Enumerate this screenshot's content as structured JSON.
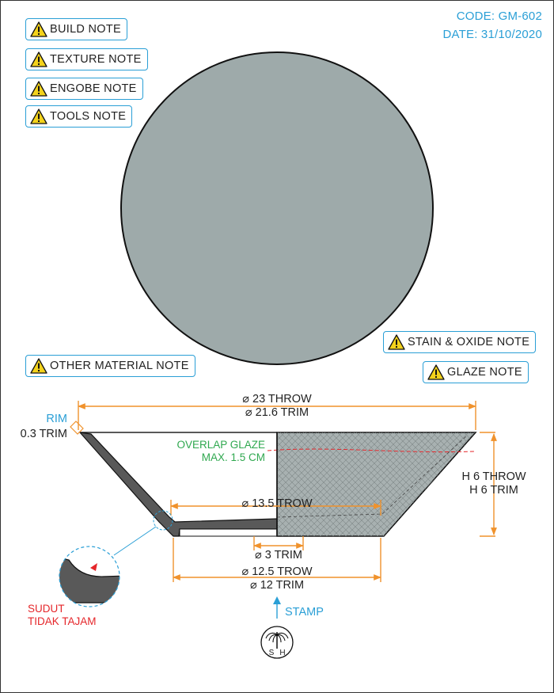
{
  "header": {
    "code": "CODE: GM-602",
    "date": "DATE: 31/10/2020"
  },
  "notes": {
    "build": "BUILD NOTE",
    "texture": "TEXTURE NOTE",
    "engobe": "ENGOBE NOTE",
    "tools": "TOOLS NOTE",
    "other_material": "OTHER MATERIAL NOTE",
    "stain_oxide": "STAIN & OXIDE NOTE",
    "glaze": "GLAZE NOTE"
  },
  "top_view": {
    "fill_color": "#9eaaaa"
  },
  "section": {
    "glaze_color": "#a8b1b1",
    "clay_color": "#595959",
    "dimension_color": "#f0922c",
    "diameter_top_throw": "⌀ 23 THROW",
    "diameter_top_trim": "⌀ 21.6 TRIM",
    "rim_label": "RIM",
    "rim_trim": "0.3 TRIM",
    "overlap_glaze_1": "OVERLAP GLAZE",
    "overlap_glaze_2": "MAX. 1.5 CM",
    "height_throw": "H 6 THROW",
    "height_trim": "H 6 TRIM",
    "diameter_inner_trow": "⌀ 13.5 TROW",
    "diameter_foot_trim": "⌀ 3 TRIM",
    "diameter_base_trow": "⌀ 12.5 TROW",
    "diameter_base_trim": "⌀ 12 TRIM",
    "detail_note_1": "SUDUT",
    "detail_note_2": "TIDAK TAJAM",
    "stamp_label": "STAMP",
    "stamp_letter_left": "S",
    "stamp_letter_right": "H"
  },
  "colors": {
    "accent": "#2a9fd6",
    "warning_red": "#e5262a",
    "glaze_label": "#2fa84f"
  }
}
